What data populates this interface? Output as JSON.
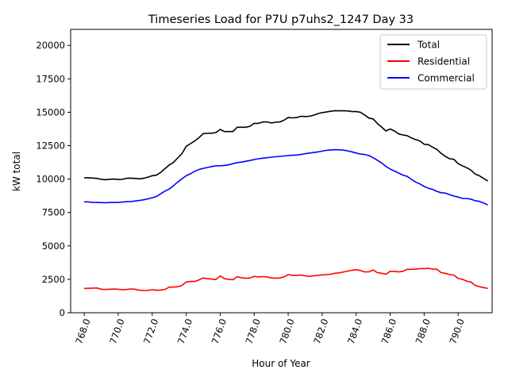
{
  "chart_data": {
    "type": "line",
    "title": "Timeseries Load for P7U p7uhs2_1247  Day 33",
    "xlabel": "Hour of Year",
    "ylabel": "kW total",
    "xlim": [
      767.2,
      792.0
    ],
    "ylim": [
      0,
      21200
    ],
    "x_ticks": [
      768,
      770,
      772,
      774,
      776,
      778,
      780,
      782,
      784,
      786,
      788,
      790
    ],
    "x_tick_labels": [
      "768.0",
      "770.0",
      "772.0",
      "774.0",
      "776.0",
      "778.0",
      "780.0",
      "782.0",
      "784.0",
      "786.0",
      "788.0",
      "790.0"
    ],
    "y_ticks": [
      0,
      2500,
      5000,
      7500,
      10000,
      12500,
      15000,
      17500,
      20000
    ],
    "y_tick_labels": [
      "0",
      "2500",
      "5000",
      "7500",
      "10000",
      "12500",
      "15000",
      "17500",
      "20000"
    ],
    "grid": false,
    "legend_position": "top-right",
    "x": [
      768.0,
      768.25,
      768.5,
      768.75,
      769.0,
      769.25,
      769.5,
      769.75,
      770.0,
      770.25,
      770.5,
      770.75,
      771.0,
      771.25,
      771.5,
      771.75,
      772.0,
      772.25,
      772.5,
      772.75,
      773.0,
      773.25,
      773.5,
      773.75,
      774.0,
      774.25,
      774.5,
      774.75,
      775.0,
      775.25,
      775.5,
      775.75,
      776.0,
      776.25,
      776.5,
      776.75,
      777.0,
      777.25,
      777.5,
      777.75,
      778.0,
      778.25,
      778.5,
      778.75,
      779.0,
      779.25,
      779.5,
      779.75,
      780.0,
      780.25,
      780.5,
      780.75,
      781.0,
      781.25,
      781.5,
      781.75,
      782.0,
      782.25,
      782.5,
      782.75,
      783.0,
      783.25,
      783.5,
      783.75,
      784.0,
      784.25,
      784.5,
      784.75,
      785.0,
      785.25,
      785.5,
      785.75,
      786.0,
      786.25,
      786.5,
      786.75,
      787.0,
      787.25,
      787.5,
      787.75,
      788.0,
      788.25,
      788.5,
      788.75,
      789.0,
      789.25,
      789.5,
      789.75,
      790.0,
      790.25,
      790.5,
      790.75,
      791.0,
      791.25,
      791.5,
      791.75
    ],
    "series": [
      {
        "name": "Total",
        "color": "#000000",
        "values": [
          10100,
          10090,
          10080,
          10050,
          9980,
          9950,
          9990,
          10000,
          9970,
          9980,
          10060,
          10070,
          10050,
          10020,
          10060,
          10150,
          10250,
          10290,
          10500,
          10780,
          11050,
          11250,
          11580,
          11900,
          12450,
          12650,
          12850,
          13100,
          13400,
          13420,
          13430,
          13480,
          13720,
          13550,
          13560,
          13560,
          13880,
          13880,
          13880,
          13950,
          14170,
          14170,
          14270,
          14280,
          14200,
          14250,
          14270,
          14400,
          14600,
          14580,
          14600,
          14700,
          14680,
          14700,
          14780,
          14900,
          14970,
          15020,
          15070,
          15120,
          15110,
          15110,
          15100,
          15050,
          15050,
          15000,
          14800,
          14560,
          14500,
          14150,
          13890,
          13600,
          13750,
          13600,
          13380,
          13300,
          13250,
          13080,
          12950,
          12850,
          12600,
          12580,
          12380,
          12220,
          11920,
          11700,
          11520,
          11480,
          11150,
          11000,
          10850,
          10680,
          10380,
          10250,
          10050,
          9850
        ]
      },
      {
        "name": "Residential",
        "color": "#ff0000",
        "values": [
          1820,
          1830,
          1840,
          1850,
          1760,
          1740,
          1760,
          1770,
          1760,
          1720,
          1740,
          1780,
          1760,
          1680,
          1660,
          1670,
          1720,
          1680,
          1700,
          1740,
          1920,
          1920,
          1950,
          2050,
          2300,
          2340,
          2340,
          2460,
          2600,
          2550,
          2520,
          2480,
          2750,
          2550,
          2500,
          2470,
          2700,
          2620,
          2580,
          2600,
          2720,
          2680,
          2700,
          2680,
          2600,
          2590,
          2600,
          2680,
          2850,
          2800,
          2800,
          2820,
          2760,
          2720,
          2760,
          2800,
          2830,
          2850,
          2880,
          2950,
          2980,
          3050,
          3110,
          3180,
          3220,
          3160,
          3050,
          3060,
          3200,
          3000,
          2950,
          2880,
          3100,
          3100,
          3050,
          3100,
          3250,
          3250,
          3260,
          3300,
          3300,
          3320,
          3260,
          3260,
          3000,
          2950,
          2850,
          2820,
          2560,
          2500,
          2370,
          2300,
          2050,
          1950,
          1880,
          1820
        ]
      },
      {
        "name": "Commercial",
        "color": "#0000ff",
        "values": [
          8300,
          8290,
          8260,
          8250,
          8240,
          8230,
          8250,
          8250,
          8260,
          8280,
          8310,
          8320,
          8360,
          8400,
          8450,
          8520,
          8600,
          8700,
          8900,
          9100,
          9250,
          9500,
          9780,
          10020,
          10250,
          10400,
          10580,
          10720,
          10800,
          10870,
          10940,
          10990,
          11000,
          11020,
          11070,
          11150,
          11230,
          11270,
          11330,
          11390,
          11460,
          11520,
          11560,
          11600,
          11640,
          11670,
          11700,
          11730,
          11760,
          11780,
          11800,
          11840,
          11900,
          11940,
          11990,
          12030,
          12090,
          12150,
          12180,
          12200,
          12190,
          12160,
          12110,
          12040,
          11950,
          11870,
          11840,
          11760,
          11600,
          11410,
          11200,
          10950,
          10750,
          10600,
          10450,
          10300,
          10200,
          9980,
          9780,
          9640,
          9450,
          9310,
          9230,
          9080,
          8980,
          8950,
          8830,
          8730,
          8660,
          8560,
          8550,
          8500,
          8380,
          8330,
          8210,
          8060
        ]
      }
    ]
  }
}
